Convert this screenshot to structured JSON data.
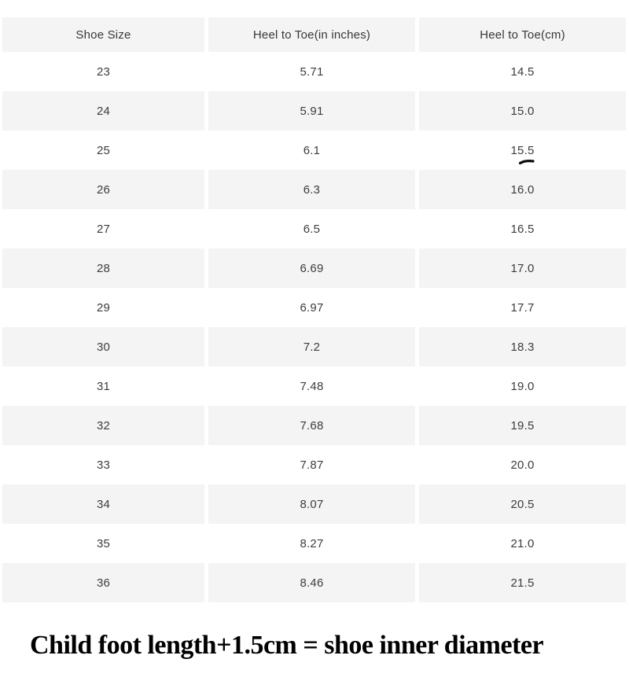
{
  "table": {
    "headers": [
      "Shoe Size",
      "Heel to Toe(in inches)",
      "Heel to Toe(cm)"
    ],
    "rows": [
      [
        "23",
        "5.71",
        "14.5"
      ],
      [
        "24",
        "5.91",
        "15.0"
      ],
      [
        "25",
        "6.1",
        "15.5"
      ],
      [
        "26",
        "6.3",
        "16.0"
      ],
      [
        "27",
        "6.5",
        "16.5"
      ],
      [
        "28",
        "6.69",
        "17.0"
      ],
      [
        "29",
        "6.97",
        "17.7"
      ],
      [
        "30",
        "7.2",
        "18.3"
      ],
      [
        "31",
        "7.48",
        "19.0"
      ],
      [
        "32",
        "7.68",
        "19.5"
      ],
      [
        "33",
        "7.87",
        "20.0"
      ],
      [
        "34",
        "8.07",
        "20.5"
      ],
      [
        "35",
        "8.27",
        "21.0"
      ],
      [
        "36",
        "8.46",
        "21.5"
      ]
    ]
  },
  "chart_data": {
    "type": "table",
    "title": "Child shoe size conversion chart",
    "columns": [
      "Shoe Size",
      "Heel to Toe(in inches)",
      "Heel to Toe(cm)"
    ],
    "rows": [
      {
        "shoe_size": 23,
        "heel_to_toe_inches": 5.71,
        "heel_to_toe_cm": 14.5
      },
      {
        "shoe_size": 24,
        "heel_to_toe_inches": 5.91,
        "heel_to_toe_cm": 15.0
      },
      {
        "shoe_size": 25,
        "heel_to_toe_inches": 6.1,
        "heel_to_toe_cm": 15.5
      },
      {
        "shoe_size": 26,
        "heel_to_toe_inches": 6.3,
        "heel_to_toe_cm": 16.0
      },
      {
        "shoe_size": 27,
        "heel_to_toe_inches": 6.5,
        "heel_to_toe_cm": 16.5
      },
      {
        "shoe_size": 28,
        "heel_to_toe_inches": 6.69,
        "heel_to_toe_cm": 17.0
      },
      {
        "shoe_size": 29,
        "heel_to_toe_inches": 6.97,
        "heel_to_toe_cm": 17.7
      },
      {
        "shoe_size": 30,
        "heel_to_toe_inches": 7.2,
        "heel_to_toe_cm": 18.3
      },
      {
        "shoe_size": 31,
        "heel_to_toe_inches": 7.48,
        "heel_to_toe_cm": 19.0
      },
      {
        "shoe_size": 32,
        "heel_to_toe_inches": 7.68,
        "heel_to_toe_cm": 19.5
      },
      {
        "shoe_size": 33,
        "heel_to_toe_inches": 7.87,
        "heel_to_toe_cm": 20.0
      },
      {
        "shoe_size": 34,
        "heel_to_toe_inches": 8.07,
        "heel_to_toe_cm": 20.5
      },
      {
        "shoe_size": 35,
        "heel_to_toe_inches": 8.27,
        "heel_to_toe_cm": 21.0
      },
      {
        "shoe_size": 36,
        "heel_to_toe_inches": 8.46,
        "heel_to_toe_cm": 21.5
      }
    ],
    "annotation": "hand-drawn black dash under the 15.5 cm value (size 25 row)"
  },
  "footer": {
    "text": "Child foot length+1.5cm = shoe inner diameter"
  },
  "colors": {
    "row_alt_background": "#f4f4f4",
    "row_background": "#ffffff",
    "table_text": "#3d3d3d",
    "footer_text": "#000000",
    "pen_mark": "#0d0d0d"
  }
}
